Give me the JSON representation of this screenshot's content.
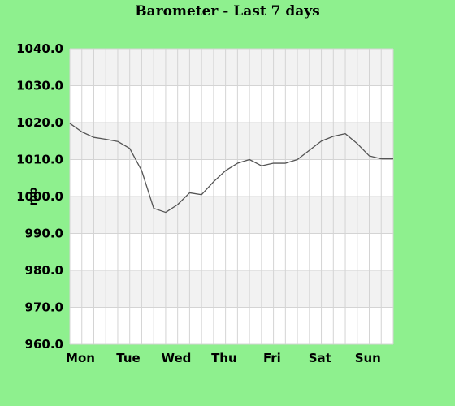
{
  "chart_data": {
    "type": "line",
    "title": "Barometer - Last 7 days",
    "ylabel": "mb",
    "ylim": [
      960,
      1040
    ],
    "y_ticks": [
      "960.0",
      "970.0",
      "980.0",
      "990.0",
      "1000.0",
      "1010.0",
      "1020.0",
      "1030.0",
      "1040.0"
    ],
    "x_labels": [
      "Mon",
      "Tue",
      "Wed",
      "Thu",
      "Fri",
      "Sat",
      "Sun"
    ],
    "x_count": 28,
    "grid": true,
    "colors": {
      "background": "#8ef08e",
      "plot_band_light": "#ffffff",
      "plot_band_dark": "#f2f2f2",
      "grid": "#d4d4d4",
      "line": "#555555"
    },
    "series": [
      {
        "x": [
          0,
          1,
          2,
          3,
          4,
          5,
          6,
          7,
          8,
          9,
          10,
          11,
          12,
          13,
          14,
          15,
          16,
          17,
          18,
          19,
          20,
          21,
          22,
          23,
          24,
          25,
          26,
          27
        ],
        "values": [
          1019.8,
          1017.5,
          1016.0,
          1015.5,
          1014.9,
          1013.0,
          1007.0,
          996.8,
          995.7,
          997.8,
          1001.0,
          1000.5,
          1004.0,
          1007.0,
          1009.0,
          1010.0,
          1008.3,
          1009.0,
          1009.0,
          1010.0,
          1012.5,
          1015.0,
          1016.3,
          1017.0,
          1014.3,
          1011.0,
          1010.2,
          1010.2
        ]
      }
    ]
  }
}
